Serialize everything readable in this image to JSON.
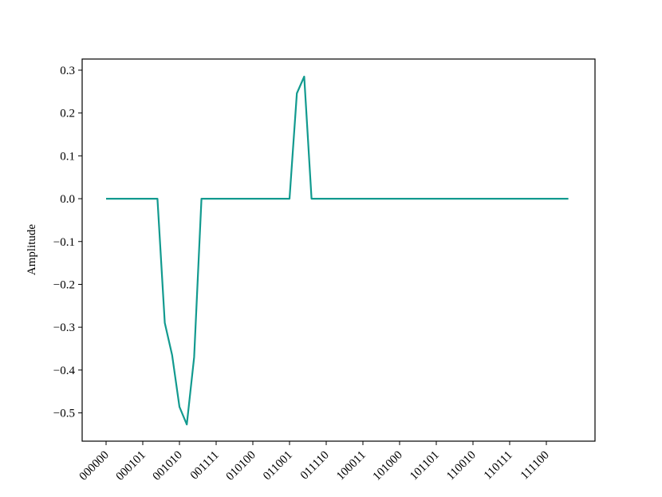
{
  "chart_data": {
    "type": "line",
    "y_label": "Amplitude",
    "categories": [
      "000000",
      null,
      null,
      null,
      null,
      "000101",
      null,
      null,
      null,
      null,
      "001010",
      null,
      null,
      null,
      null,
      "001111",
      null,
      null,
      null,
      null,
      "010100",
      null,
      null,
      null,
      null,
      "011001",
      null,
      null,
      null,
      null,
      "011110",
      null,
      null,
      null,
      null,
      "100011",
      null,
      null,
      null,
      null,
      "101000",
      null,
      null,
      null,
      null,
      "101101",
      null,
      null,
      null,
      null,
      "110010",
      null,
      null,
      null,
      null,
      "110111",
      null,
      null,
      null,
      null,
      "111100",
      null,
      null,
      null
    ],
    "values": [
      0,
      0,
      0,
      0,
      0,
      0,
      0,
      0,
      -0.29,
      -0.365,
      -0.486,
      -0.527,
      -0.37,
      0,
      0,
      0,
      0,
      0,
      0,
      0,
      0,
      0,
      0,
      0,
      0,
      0,
      0.246,
      0.285,
      0,
      0,
      0,
      0,
      0,
      0,
      0,
      0,
      0,
      0,
      0,
      0,
      0,
      0,
      0,
      0,
      0,
      0,
      0,
      0,
      0,
      0,
      0,
      0,
      0,
      0,
      0,
      0,
      0,
      0,
      0,
      0,
      0,
      0,
      0,
      0
    ],
    "color": "#129a8f",
    "ylim": [
      -0.566,
      0.326
    ],
    "yticks": [
      {
        "value": -0.5,
        "label": "−0.5"
      },
      {
        "value": -0.4,
        "label": "−0.4"
      },
      {
        "value": -0.3,
        "label": "−0.3"
      },
      {
        "value": -0.2,
        "label": "−0.2"
      },
      {
        "value": -0.1,
        "label": "−0.1"
      },
      {
        "value": 0,
        "label": "0.0"
      },
      0.1,
      0.2,
      0.3
    ]
  }
}
